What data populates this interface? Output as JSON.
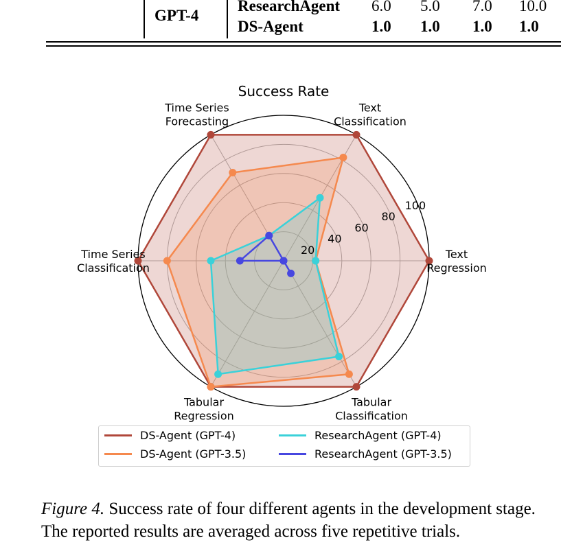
{
  "table": {
    "model_label": "GPT-4",
    "rows": [
      {
        "method": "ResearchAgent",
        "values": [
          "6.0",
          "5.0",
          "7.0",
          "10.0"
        ],
        "bold": false
      },
      {
        "method": "DS-Agent",
        "values": [
          "1.0",
          "1.0",
          "1.0",
          "1.0"
        ],
        "bold": true
      }
    ]
  },
  "chart_data": {
    "type": "radar",
    "title": "Success Rate",
    "categories": [
      "Text\nRegression",
      "Text\nClassification",
      "Time Series\nForecasting",
      "Time Series\nClassification",
      "Tabular\nRegression",
      "Tabular\nClassification"
    ],
    "radial_ticks": [
      "20",
      "40",
      "60",
      "80",
      "100"
    ],
    "radial_range": [
      0,
      100
    ],
    "grid": true,
    "legend_position": "bottom",
    "series": [
      {
        "name": "DS-Agent (GPT-4)",
        "color": "#b0473a",
        "values": [
          100,
          100,
          100,
          100,
          100,
          100
        ],
        "fill": true
      },
      {
        "name": "DS-Agent (GPT-3.5)",
        "color": "#f5894e",
        "values": [
          22,
          82,
          70,
          80,
          100,
          90
        ],
        "fill": true
      },
      {
        "name": "ResearchAgent (GPT-4)",
        "color": "#3ad1d9",
        "values": [
          22,
          50,
          20,
          50,
          90,
          76
        ],
        "fill": true
      },
      {
        "name": "ResearchAgent (GPT-3.5)",
        "color": "#4747e0",
        "values": [
          0,
          0,
          20,
          30,
          0,
          10
        ],
        "fill": false
      }
    ]
  },
  "caption": {
    "figure_label": "Figure 4.",
    "text": " Success rate of four different agents in the development stage. The reported results are averaged across five repetitive trials."
  }
}
